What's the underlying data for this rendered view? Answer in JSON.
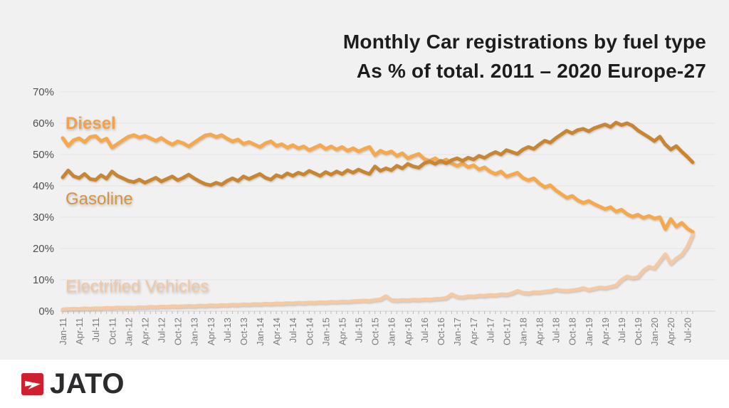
{
  "title": {
    "line1": "Monthly Car registrations by fuel type",
    "line2": "As % of total. 2011 – 2020 Europe-27"
  },
  "brand": {
    "name": "JATO",
    "logo_color": "#d01f2f",
    "wordmark_color": "#2b2b2e"
  },
  "chart_data": {
    "type": "line",
    "title": "Monthly Car registrations by fuel type. As % of total. 2011 – 2020 Europe-27",
    "x_start": "Jan-11",
    "x_end": "Aug-20",
    "x_interval": "monthly",
    "x_tick_labels": [
      "Jan-11",
      "Apr-11",
      "Jul-11",
      "Oct-11",
      "Jan-12",
      "Apr-12",
      "Jul-12",
      "Oct-12",
      "Jan-13",
      "Apr-13",
      "Jul-13",
      "Oct-13",
      "Jan-14",
      "Apr-14",
      "Jul-14",
      "Oct-14",
      "Jan-15",
      "Apr-15",
      "Jul-15",
      "Oct-15",
      "Jan-16",
      "Apr-16",
      "Jul-16",
      "Oct-16",
      "Jan-17",
      "Apr-17",
      "Jul-17",
      "Oct-17",
      "Jan-18",
      "Apr-18",
      "Jul-18",
      "Oct-18",
      "Jan-19",
      "Apr-19",
      "Jul-19",
      "Oct-19",
      "Jan-20",
      "Apr-20",
      "Jul-20"
    ],
    "y_tick_labels": [
      "0%",
      "10%",
      "20%",
      "30%",
      "40%",
      "50%",
      "60%",
      "70%"
    ],
    "ylim": [
      0,
      70
    ],
    "grid": true,
    "legend_position": "inline-labels",
    "series": [
      {
        "name": "Diesel",
        "color": "#f6a84e",
        "label_color": "#efa14b",
        "values": [
          55.3,
          52.8,
          54.6,
          55.2,
          54.0,
          55.6,
          55.9,
          54.3,
          55.1,
          52.2,
          53.4,
          54.6,
          55.7,
          56.2,
          55.4,
          56.0,
          55.2,
          54.4,
          55.3,
          54.1,
          53.2,
          54.2,
          53.6,
          52.6,
          53.8,
          55.0,
          56.1,
          56.4,
          55.6,
          56.2,
          55.1,
          54.2,
          54.8,
          53.4,
          54.0,
          53.2,
          52.4,
          53.6,
          54.2,
          52.8,
          53.3,
          52.2,
          53.0,
          52.0,
          52.6,
          51.4,
          52.2,
          53.0,
          51.8,
          52.6,
          51.6,
          52.4,
          51.2,
          52.0,
          51.0,
          51.8,
          52.4,
          49.8,
          51.2,
          50.4,
          51.0,
          49.6,
          50.4,
          48.8,
          49.6,
          50.2,
          48.6,
          48.0,
          48.8,
          47.6,
          48.4,
          47.2,
          46.4,
          47.2,
          46.0,
          46.6,
          45.2,
          45.9,
          44.6,
          43.8,
          44.6,
          43.0,
          43.6,
          44.2,
          42.6,
          41.8,
          42.4,
          40.8,
          39.6,
          40.2,
          38.6,
          37.4,
          36.2,
          36.8,
          35.4,
          34.6,
          35.2,
          34.2,
          33.4,
          32.6,
          33.2,
          31.8,
          32.4,
          31.0,
          30.2,
          30.8,
          29.8,
          30.4,
          29.6,
          30.0,
          26.2,
          29.4,
          27.0,
          28.2,
          26.4,
          25.3
        ]
      },
      {
        "name": "Gasoline",
        "color": "#c98631",
        "label_color": "#d5953f",
        "values": [
          42.7,
          44.9,
          43.1,
          42.5,
          43.8,
          42.2,
          41.9,
          43.4,
          42.3,
          44.6,
          43.2,
          42.4,
          41.6,
          41.2,
          42.0,
          41.0,
          41.8,
          42.6,
          41.4,
          42.2,
          43.0,
          41.8,
          42.6,
          43.6,
          42.4,
          41.4,
          40.6,
          40.2,
          41.0,
          40.4,
          41.6,
          42.4,
          41.6,
          43.0,
          42.2,
          43.0,
          43.8,
          42.6,
          42.0,
          43.4,
          42.8,
          44.0,
          43.2,
          44.2,
          43.6,
          44.8,
          44.0,
          43.2,
          44.4,
          43.6,
          44.6,
          43.8,
          45.0,
          44.2,
          45.2,
          44.4,
          43.8,
          46.2,
          44.8,
          45.6,
          45.0,
          46.4,
          45.6,
          47.0,
          46.2,
          45.8,
          47.2,
          47.8,
          47.0,
          48.0,
          47.2,
          48.2,
          48.8,
          48.0,
          49.0,
          48.4,
          49.6,
          48.9,
          50.0,
          50.8,
          50.0,
          51.4,
          50.8,
          50.2,
          51.6,
          52.4,
          51.8,
          53.2,
          54.4,
          53.8,
          55.2,
          56.4,
          57.6,
          56.8,
          57.8,
          58.2,
          57.4,
          58.4,
          59.0,
          59.6,
          58.8,
          60.2,
          59.4,
          60.0,
          59.2,
          57.7,
          56.6,
          55.5,
          54.3,
          55.7,
          53.2,
          51.6,
          52.7,
          50.9,
          49.3,
          47.5
        ]
      },
      {
        "name": "Electrified Vehicles",
        "color": "#f5c9a3",
        "label_color": "#f2c7a2",
        "values": [
          0.6,
          0.7,
          0.8,
          0.7,
          0.9,
          0.8,
          1.0,
          0.9,
          1.1,
          1.0,
          1.2,
          1.1,
          1.2,
          1.1,
          1.3,
          1.2,
          1.4,
          1.3,
          1.5,
          1.4,
          1.6,
          1.5,
          1.6,
          1.7,
          1.6,
          1.8,
          1.7,
          1.9,
          1.8,
          2.0,
          1.9,
          2.1,
          2.0,
          2.2,
          2.1,
          2.3,
          2.2,
          2.4,
          2.3,
          2.5,
          2.4,
          2.6,
          2.5,
          2.7,
          2.6,
          2.8,
          2.7,
          2.9,
          2.8,
          3.0,
          2.9,
          3.1,
          3.0,
          3.2,
          3.3,
          3.4,
          3.3,
          3.6,
          3.8,
          4.8,
          3.6,
          3.4,
          3.6,
          3.5,
          3.7,
          3.6,
          3.8,
          3.7,
          3.9,
          4.0,
          4.2,
          5.4,
          4.6,
          4.4,
          4.8,
          4.7,
          5.0,
          4.9,
          5.2,
          5.1,
          5.4,
          5.3,
          5.7,
          6.5,
          5.9,
          5.7,
          6.1,
          6.0,
          6.3,
          6.4,
          6.9,
          6.6,
          6.5,
          6.7,
          6.9,
          7.4,
          6.8,
          7.2,
          7.6,
          7.4,
          7.8,
          8.2,
          10.0,
          11.1,
          10.6,
          10.9,
          13.0,
          14.2,
          13.7,
          16.0,
          18.2,
          15.2,
          16.8,
          18.0,
          20.5,
          24.4
        ]
      }
    ]
  }
}
